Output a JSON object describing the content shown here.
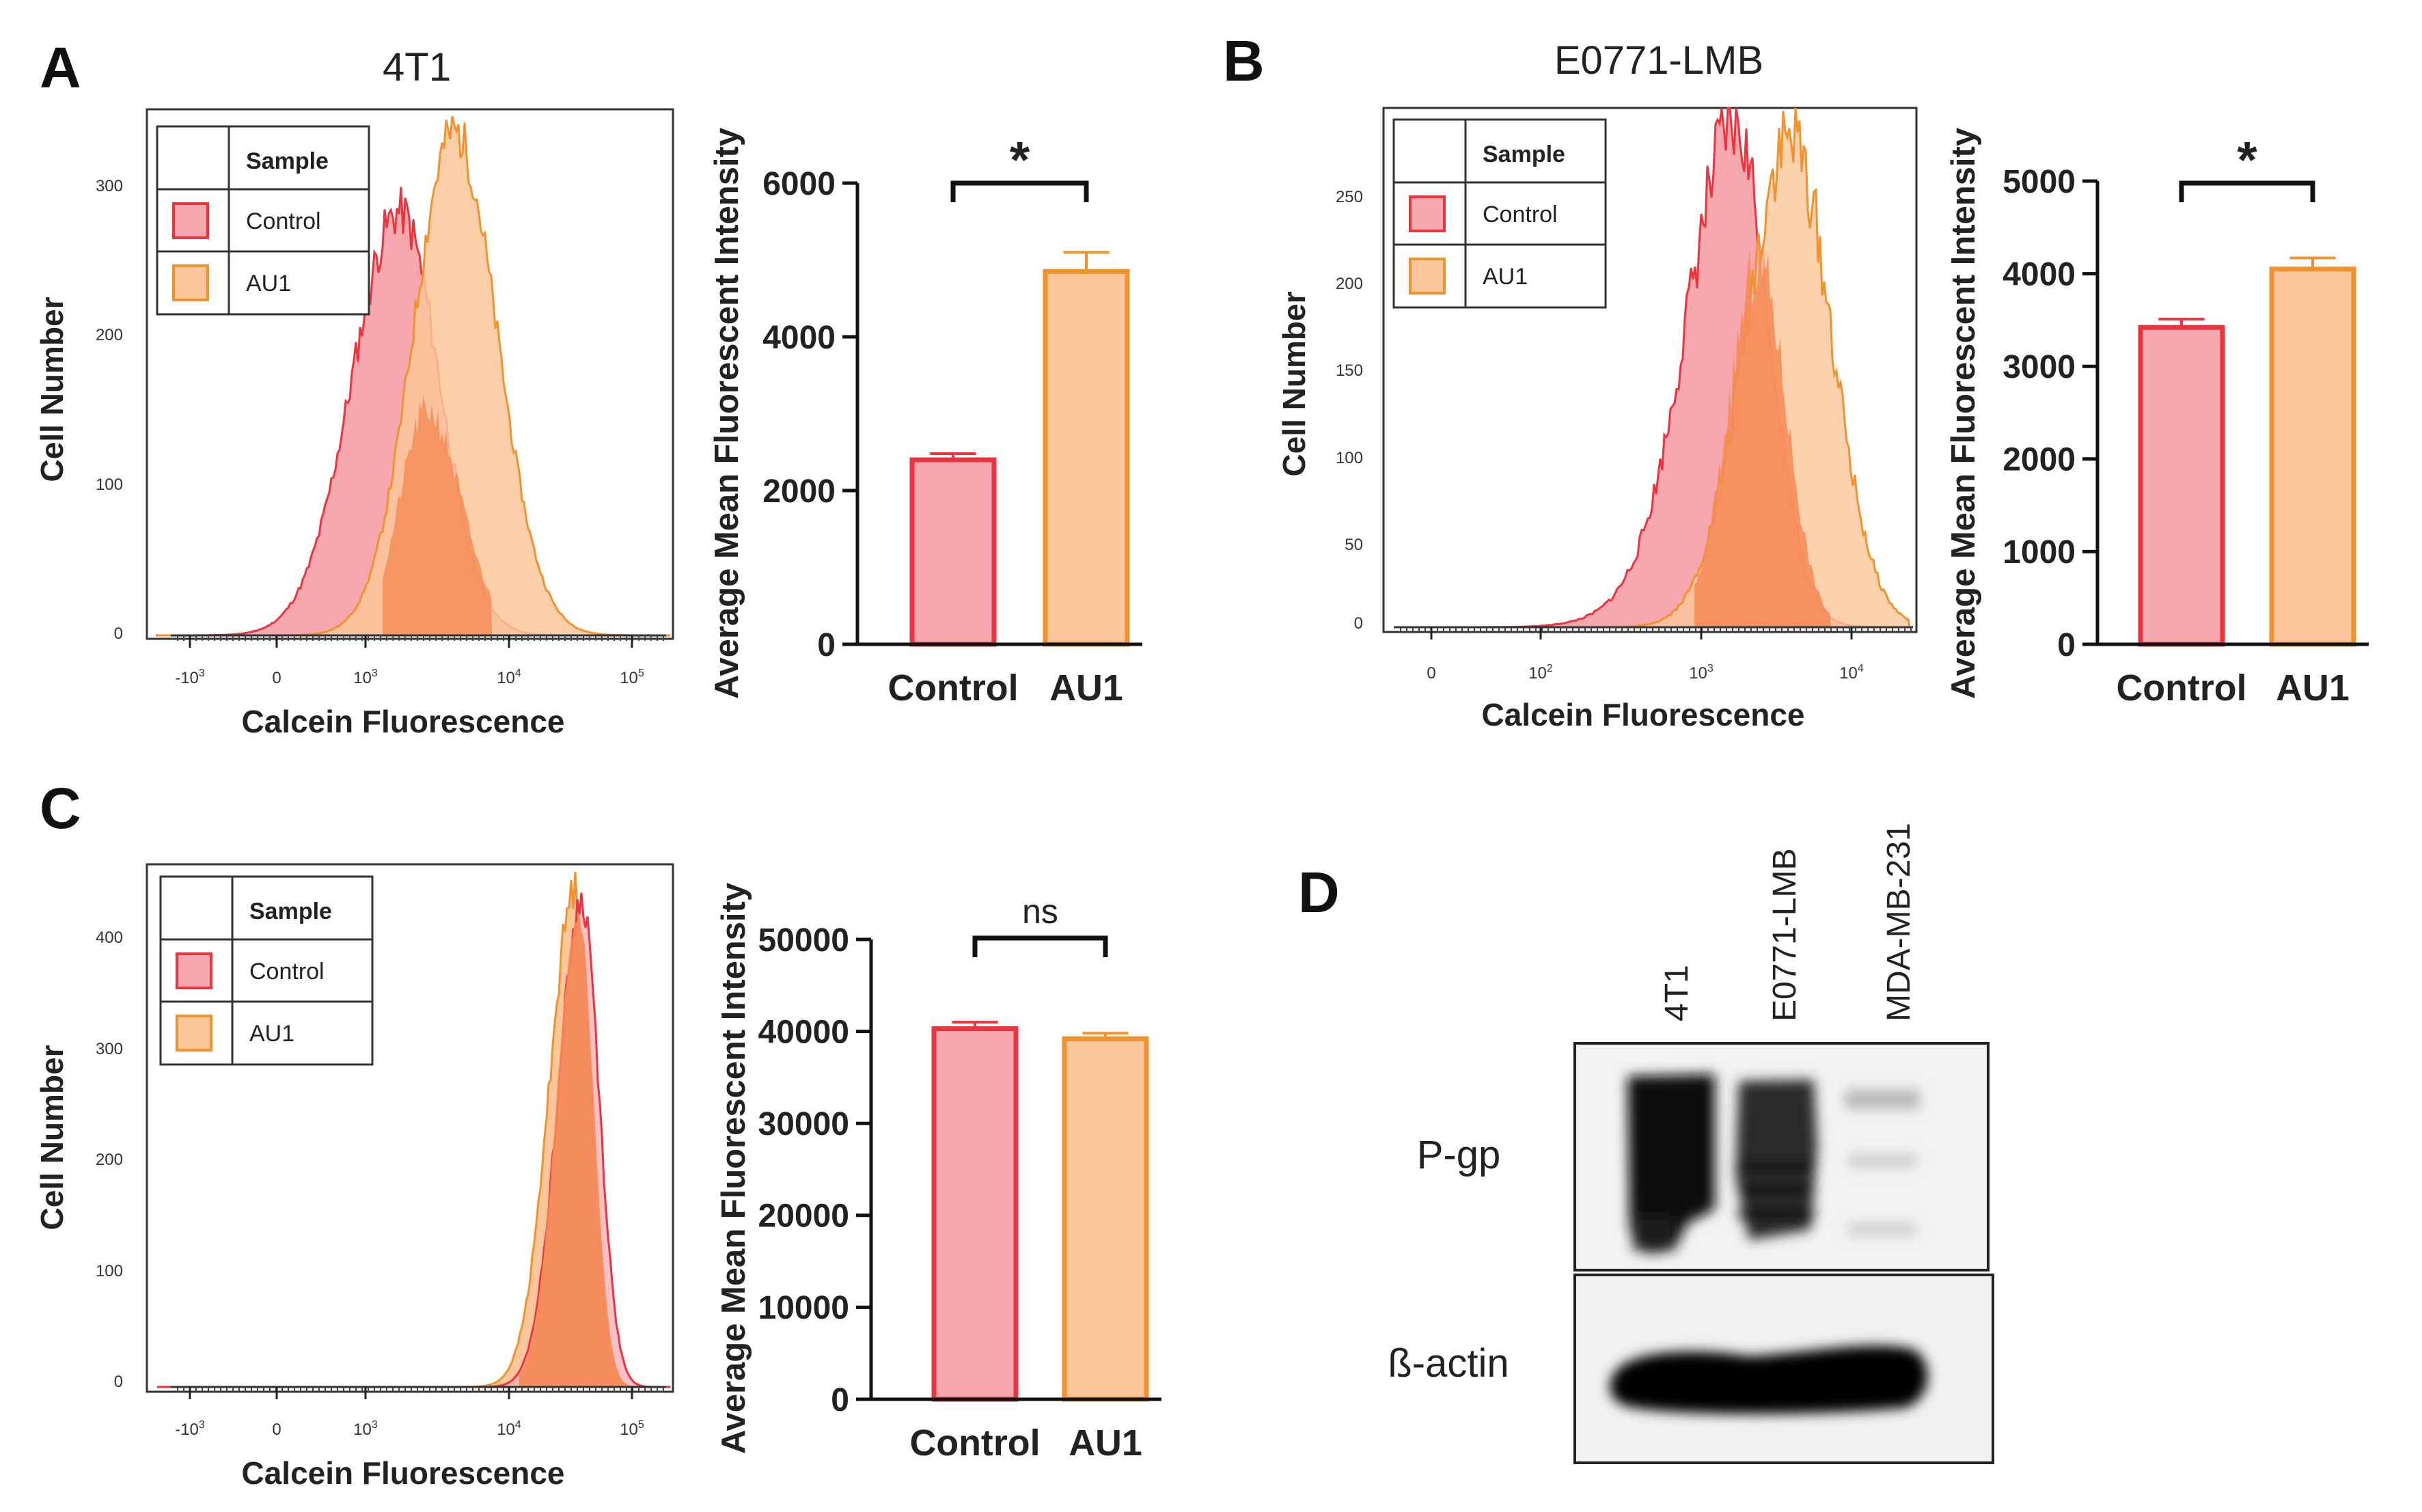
{
  "panels": {
    "A": {
      "label": "A",
      "title": "4T1"
    },
    "B": {
      "label": "B",
      "title": "E0771-LMB"
    },
    "C": {
      "label": "C",
      "title": ""
    },
    "D": {
      "label": "D"
    }
  },
  "legend": {
    "header": "Sample",
    "items": [
      "Control",
      "AU1"
    ]
  },
  "colors": {
    "control": "#e8353f",
    "control_fill": "#f7a7ae",
    "au1": "#f0922e",
    "au1_fill": "#fbc79a",
    "overlap": "#f48a55"
  },
  "chart_data": [
    {
      "id": "A-hist",
      "type": "area",
      "panel": "A",
      "xlabel": "Calcein Fluorescence",
      "ylabel": "Cell Number",
      "xscale": "biexponential",
      "xticks": [
        "-10^3",
        "0",
        "10^3",
        "10^4",
        "10^5"
      ],
      "yticks": [
        0,
        100,
        200,
        300
      ],
      "ylim": [
        0,
        340
      ],
      "series": [
        {
          "name": "Control",
          "peak_x": "2x10^3",
          "peak_y": 280
        },
        {
          "name": "AU1",
          "peak_x": "4x10^3",
          "peak_y": 335
        }
      ]
    },
    {
      "id": "A-bar",
      "type": "bar",
      "panel": "A",
      "categories": [
        "Control",
        "AU1"
      ],
      "values": [
        2400,
        4850
      ],
      "errors": [
        80,
        250
      ],
      "ylabel": "Average Mean Fluorescent Intensity",
      "ylim": [
        0,
        6000
      ],
      "yticks": [
        0,
        2000,
        4000,
        6000
      ],
      "significance": "*"
    },
    {
      "id": "B-hist",
      "type": "area",
      "panel": "B",
      "xlabel": "Calcein Fluorescence",
      "ylabel": "Cell Number",
      "xscale": "biexponential",
      "xticks": [
        "0",
        "10^2",
        "10^3",
        "10^4"
      ],
      "yticks": [
        0,
        50,
        100,
        150,
        200,
        250
      ],
      "ylim": [
        0,
        290
      ],
      "series": [
        {
          "name": "Control",
          "peak_x": "3x10^3",
          "peak_y": 285
        },
        {
          "name": "AU1",
          "peak_x": "4x10^3",
          "peak_y": 280
        }
      ]
    },
    {
      "id": "B-bar",
      "type": "bar",
      "panel": "B",
      "categories": [
        "Control",
        "AU1"
      ],
      "values": [
        3420,
        4050
      ],
      "errors": [
        90,
        120
      ],
      "ylabel": "Average Mean Fluorescent Intensity",
      "ylim": [
        0,
        5000
      ],
      "yticks": [
        0,
        1000,
        2000,
        3000,
        4000,
        5000
      ],
      "significance": "*"
    },
    {
      "id": "C-hist",
      "type": "area",
      "panel": "C",
      "xlabel": "Calcein Fluorescence",
      "ylabel": "Cell Number",
      "xscale": "biexponential",
      "xticks": [
        "-10^3",
        "0",
        "10^3",
        "10^4",
        "10^5"
      ],
      "yticks": [
        0,
        100,
        200,
        300,
        400
      ],
      "ylim": [
        0,
        460
      ],
      "series": [
        {
          "name": "Control",
          "peak_x": "4x10^4",
          "peak_y": 430
        },
        {
          "name": "AU1",
          "peak_x": "3.6x10^4",
          "peak_y": 440
        }
      ]
    },
    {
      "id": "C-bar",
      "type": "bar",
      "panel": "C",
      "categories": [
        "Control",
        "AU1"
      ],
      "values": [
        40300,
        39200
      ],
      "errors": [
        700,
        600
      ],
      "ylabel": "Average Mean Fluorescent Intensity",
      "ylim": [
        0,
        50000
      ],
      "yticks": [
        0,
        10000,
        20000,
        30000,
        40000,
        50000
      ],
      "significance": "ns"
    }
  ],
  "blot": {
    "lanes": [
      "4T1",
      "E0771-LMB",
      "MDA-MB-231"
    ],
    "rows": [
      {
        "label": "P-gp",
        "intensity": [
          1.0,
          0.75,
          0.12
        ]
      },
      {
        "label": "ß-actin",
        "intensity": [
          1.0,
          1.0,
          1.0
        ]
      }
    ]
  }
}
